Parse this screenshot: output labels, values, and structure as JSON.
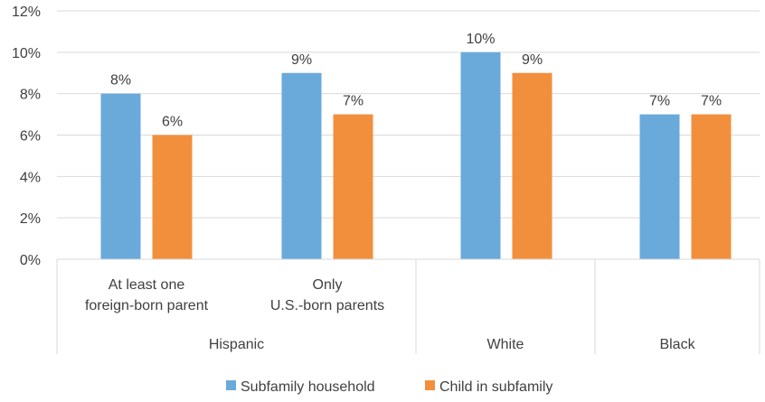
{
  "chart_data": {
    "type": "bar",
    "groups": [
      {
        "label_lines": [
          "At least one",
          "foreign-born parent"
        ],
        "parent": "Hispanic"
      },
      {
        "label_lines": [
          "Only",
          "U.S.-born parents"
        ],
        "parent": "Hispanic"
      },
      {
        "label_lines": [],
        "parent": "White"
      },
      {
        "label_lines": [],
        "parent": "Black"
      }
    ],
    "parent_categories": [
      "Hispanic",
      "White",
      "Black"
    ],
    "series": [
      {
        "name": "Subfamily household",
        "color": "#6aaadb",
        "values": [
          8,
          9,
          10,
          7
        ],
        "labels": [
          "8%",
          "9%",
          "10%",
          "7%"
        ]
      },
      {
        "name": "Child in subfamily",
        "color": "#f28f3c",
        "values": [
          6,
          7,
          9,
          7
        ],
        "labels": [
          "6%",
          "7%",
          "9%",
          "7%"
        ]
      }
    ],
    "yticks": [
      "0%",
      "2%",
      "4%",
      "6%",
      "8%",
      "10%",
      "12%"
    ],
    "ylim": [
      0,
      12
    ],
    "grid": true,
    "legend": "bottom"
  }
}
